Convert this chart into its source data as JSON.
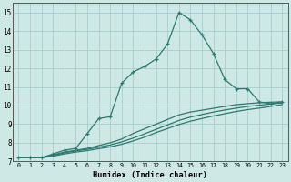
{
  "background_color": "#cde8e5",
  "grid_color": "#aacccc",
  "line_color": "#2d7a6e",
  "xlabel": "Humidex (Indice chaleur)",
  "xlim": [
    -0.5,
    23.5
  ],
  "ylim": [
    7,
    15.5
  ],
  "xticks": [
    0,
    1,
    2,
    3,
    4,
    5,
    6,
    7,
    8,
    9,
    10,
    11,
    12,
    13,
    14,
    15,
    16,
    17,
    18,
    19,
    20,
    21,
    22,
    23
  ],
  "yticks": [
    7,
    8,
    9,
    10,
    11,
    12,
    13,
    14,
    15
  ],
  "series": [
    {
      "x": [
        0,
        1,
        2,
        3,
        4,
        5,
        6,
        7,
        8,
        9,
        10,
        11,
        12,
        13,
        14,
        15,
        16,
        17,
        18,
        19,
        20,
        21,
        22,
        23
      ],
      "y": [
        7.2,
        7.2,
        7.2,
        7.4,
        7.6,
        7.7,
        8.5,
        9.3,
        9.4,
        11.2,
        11.8,
        12.1,
        12.5,
        13.3,
        15.0,
        14.6,
        13.8,
        12.8,
        11.4,
        10.9,
        10.9,
        10.2,
        10.1,
        10.2
      ],
      "marker": true
    },
    {
      "x": [
        0,
        1,
        2,
        3,
        4,
        5,
        6,
        7,
        8,
        9,
        10,
        11,
        12,
        13,
        14,
        15,
        16,
        17,
        18,
        19,
        20,
        21,
        22,
        23
      ],
      "y": [
        7.2,
        7.2,
        7.2,
        7.35,
        7.5,
        7.6,
        7.7,
        7.85,
        8.0,
        8.2,
        8.5,
        8.75,
        9.0,
        9.25,
        9.5,
        9.65,
        9.75,
        9.85,
        9.95,
        10.05,
        10.1,
        10.15,
        10.18,
        10.2
      ],
      "marker": false
    },
    {
      "x": [
        0,
        1,
        2,
        3,
        4,
        5,
        6,
        7,
        8,
        9,
        10,
        11,
        12,
        13,
        14,
        15,
        16,
        17,
        18,
        19,
        20,
        21,
        22,
        23
      ],
      "y": [
        7.2,
        7.2,
        7.2,
        7.32,
        7.46,
        7.56,
        7.65,
        7.76,
        7.88,
        8.05,
        8.25,
        8.48,
        8.72,
        8.96,
        9.2,
        9.38,
        9.52,
        9.65,
        9.76,
        9.86,
        9.95,
        10.02,
        10.08,
        10.14
      ],
      "marker": false
    },
    {
      "x": [
        0,
        1,
        2,
        3,
        4,
        5,
        6,
        7,
        8,
        9,
        10,
        11,
        12,
        13,
        14,
        15,
        16,
        17,
        18,
        19,
        20,
        21,
        22,
        23
      ],
      "y": [
        7.2,
        7.2,
        7.2,
        7.28,
        7.4,
        7.5,
        7.58,
        7.68,
        7.78,
        7.92,
        8.1,
        8.3,
        8.55,
        8.76,
        8.98,
        9.16,
        9.3,
        9.44,
        9.56,
        9.68,
        9.78,
        9.86,
        9.95,
        10.05
      ],
      "marker": false
    }
  ]
}
